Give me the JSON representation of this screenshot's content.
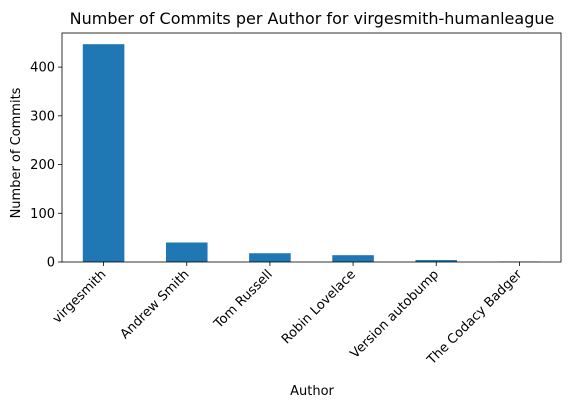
{
  "chart_data": {
    "type": "bar",
    "title": "Number of Commits per Author for virgesmith-humanleague",
    "xlabel": "Author",
    "ylabel": "Number of Commits",
    "categories": [
      "virgesmith",
      "Andrew Smith",
      "Tom Russell",
      "Robin Lovelace",
      "Version autobump",
      "The Codacy Badger"
    ],
    "values": [
      447,
      40,
      18,
      14,
      4,
      1
    ],
    "ylim": [
      0,
      470
    ],
    "yticks": [
      0,
      100,
      200,
      300,
      400
    ],
    "bar_color": "#1f77b4",
    "grid": false,
    "legend": "none"
  }
}
